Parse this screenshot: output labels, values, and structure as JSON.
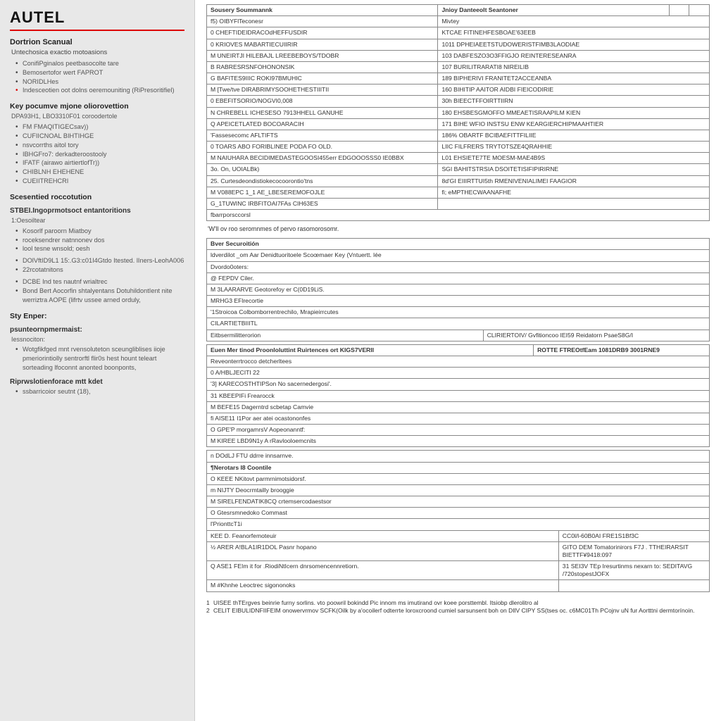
{
  "brand": "AUTEL",
  "sidebar": {
    "h1": "Dortrion Scanual",
    "sub1": "Untechosica exactio motoasions",
    "items1": [
      "ConifiPginalos peetbasocolte tare",
      "Bemosertofor wert FAPROT",
      "NORIDLHes",
      "Indesceotien oot dolns oeremouniting (RiPresoritifiel)"
    ],
    "h2": "Key pocumve mjone oliorovettion",
    "sub2": "DPA93H1, LBO3310F01 coroodertole",
    "items2": [
      "FM FMAQITIGECsav))",
      "CUFIICNOAL BIHTIHGE",
      "nsvcorrths aitol tory",
      "IBHGFro7: derkadteroostooly",
      "IFATF (airawo airtiertlofTr))",
      "CHIBLNH EHEHENE",
      "CUEIITREHCRI"
    ],
    "h3": "Scesentied roccotution",
    "sub3": "STBEI.Ingoprmotsoct entantoritions",
    "sub3b": "1:Oesoiltear",
    "items3": [
      "Kosorlf paroorn Miatboy",
      "roceksendrer natnnonev dos",
      "lool tesne wnsold; oesh"
    ],
    "items3b": [
      "DOlVftID9L1 15:.G3:c01I4Gtdo Itested. lIners-LeohA006",
      "22rcotatnitons"
    ],
    "items3c": [
      "DCBE Ind tes nautnf wrialtrec",
      "Bond Bert Aocorfin shtalyentans DotuhildontIent nite werriztra AOPE (lifrtv ussee arned orduly,"
    ],
    "h4": "Sty Enper:",
    "sub4": "psunteornpmermaist:",
    "sub4b": "Iessnociton:",
    "items4": [
      "Wotgfikfged mnt rvensoluteton sceungliblises iioje pmeriorintiolly sentrorftl flir0s hest hount teleart sorteading lfoconnt anonted boonponts,"
    ],
    "h5": "Riprwslotienforace mtt kdet",
    "items5": [
      "ssbarricoior seutnt (18),"
    ]
  },
  "main": {
    "tableA": {
      "headL": "Sousery Soummannk",
      "headR": "Jnioy Danteeolt Seantoner",
      "rows": [
        [
          "f5) OIBYFlTeconesr",
          "Mivtey"
        ],
        [
          "0 CHEFTIDEIDRACOdHEFFUSDIR",
          "KTCAE FITINEHFESBOAE'63EEB"
        ],
        [
          "0 KRIOVES MABARTIECUIIRIR",
          "1011 DPHEIAEETSTUDOWERISTFIMB3LAODIAE"
        ],
        [
          "M UNEIRTJI HILEBAJL LREEBEBOYS/TDOBR",
          "103 DABFESZO3O3FFIGJO REINTERESEANRA"
        ],
        [
          "B RABRESRSNFOHONONSIK",
          "107 BURILITRARATI8 NIREILIB"
        ],
        [
          "G BAFITES9IIIC ROKI97BMUHIC",
          "189 BIPHERIVI FRANITET2ACCEANBA"
        ],
        [
          "M [Twe/tve DIRABRIMYSOOHETHESTIIITII",
          "160 BIHITIP AAITOR AIDBI FIEICODIRIE"
        ],
        [
          "0 EBEFITSORIO/NOGVI0,008",
          "30h BIEECTFFOIRTTIIRN"
        ],
        [
          "N CHREBELL ICHESESO 7913HHELL GANUHE",
          "180 EHSBESGMOFFO MMEAETISRAAPILM KIEN"
        ],
        [
          "Q APEICETLATED BOCOARACIH",
          "171 BIHE WFIO INSTSU ENW KEARGIERCHIPMAAHTIER"
        ],
        [
          "  'Fassesecomc AFLTIFTS",
          "186% OBARTF BCIBAEFITTFILIIE"
        ],
        [
          "0 TOARS ABO FORIBLINEE PODA FO OLD.",
          "LIIC FILFRERS TRYTOTSZE4QRAHHIE"
        ],
        [
          "M NAIUHARA BECIDIMEDASTEGOOSI455err EDGOOOSSS0 IE0BBX",
          "L01 EHSIETE7TE MOESM-MAE4B9S"
        ],
        [
          "3o. On, UOIALBk)",
          "SGI BAHITSTRSIA DSOITETISIFIPIRIRNE"
        ],
        [
          "25. Curtesdeondistiokecocoorontio'tns",
          "8d'GI EIIIRTTUI5th RMENIVENIALIMEI FAAGIOR"
        ],
        [
          "M V088EPC 1_1 AE_LBESEREMOFOJLE",
          "fi; eMPTHECWAANAFHE"
        ],
        [
          "G_1TUWINC IRBFITOAI7FAs CIH63ES",
          ""
        ]
      ],
      "lastRow": "fbarrporsccorsl",
      "caption": "'W'll ov roo seromnmes of pervo rasomorosomr."
    },
    "tableB": {
      "head": "Bver Securoitión",
      "sub": "ldverdilot _om Aar Denidtuoritoele Scoœmaer Key (Vntuertt. lée",
      "rows": [
        "Dvordo0oters:",
        "@ FEPDV Ciler.",
        "M 3LAARARVE Geotorefoy er C(0D19LiS.",
        "        MRHG3 EFlrecortie",
        "        '1Stroicoa Colbomborrentrechilo, Mrapieirrcutes",
        "CILARTIETBIIITL"
      ],
      "bottomL": "Eitbsermilitterorion",
      "bottomR": "CLIRIERTOIV/ Gvfitioncoo IEI59 Reidatorn PsaeS8G/I"
    },
    "tableC": {
      "headL": "Euen Mer tinod Proonloluttint Ruirtences ort KIGS7VERII",
      "headR": "ROTTE FTREOtfEam 1081DRB9 3001RNE9",
      "sub": "Reveonterrtrocco detcherltees",
      "rows": [
        "0 A/HBLJECITI 22",
        "'3] KARECOSTHTIPSon No sacernedergosi'.",
        "31 KBEEPIFi Frearocck",
        "M BEFE15 Dagerntrd scbetap Camvie",
        "fi AISE11 I1Por aer atei ocastononfes",
        "O GPE'P morgamrsV Aopeonanntf:",
        "M KIREE LBD9N1y A rRavlooloemcnits"
      ]
    },
    "tableD": {
      "head": "n  DOdLJ FTU ddrre innsarnve.",
      "sub": "¶Nerotars I8 Coontile",
      "rows": [
        "O KEEE NKitovt parmrnimotsidorsf.",
        "m NIJTY Deocrmtailly brooggie",
        "M SIRELFENDATIK8CQ crtemsercodaestsor",
        "O Gtesrsmnedoko Commast"
      ],
      "mid": "l'PrionttcT1i",
      "midL": "KEE D. Feanorfemoteuir",
      "midR": "CC0l/l-60B0AI FRE1S1Bf3C",
      "bottom": [
        [
          "½ ARER A!BLA1IR1DOL Pasnr hopano",
          "GITO DEM Tomatorinirors F7J . TTHEIRARSIT BIETTF¥9418:097"
        ],
        [
          "Q ASE1 FEIm it for .RiodiNtIcern dnrsomencennretiorn.",
          "31 SEI3V TEp Iresurtinms nexarn to:   SEDITAVG /720stopestJOFX"
        ],
        [
          "M #Khnhe Leoctrec sigononoks",
          ""
        ]
      ]
    },
    "footnotes": [
      "UISEE thTErgves beinrie furny sorlins. vto poowril bokindd Pic innom ms imutirand ovr koee porsttembl. Itsiobp dlerolitro al",
      "CELIT EIBULIDNFIIFEIM onowervrmov SCFK(Oilk by a'ocoilerf odterrte loroxcroond cumiel sarsunsent boh on DIlV CIPY SS(tses oc. c6MC01Th PCojnv uN fur Aortttni dermtorínoin."
    ]
  }
}
